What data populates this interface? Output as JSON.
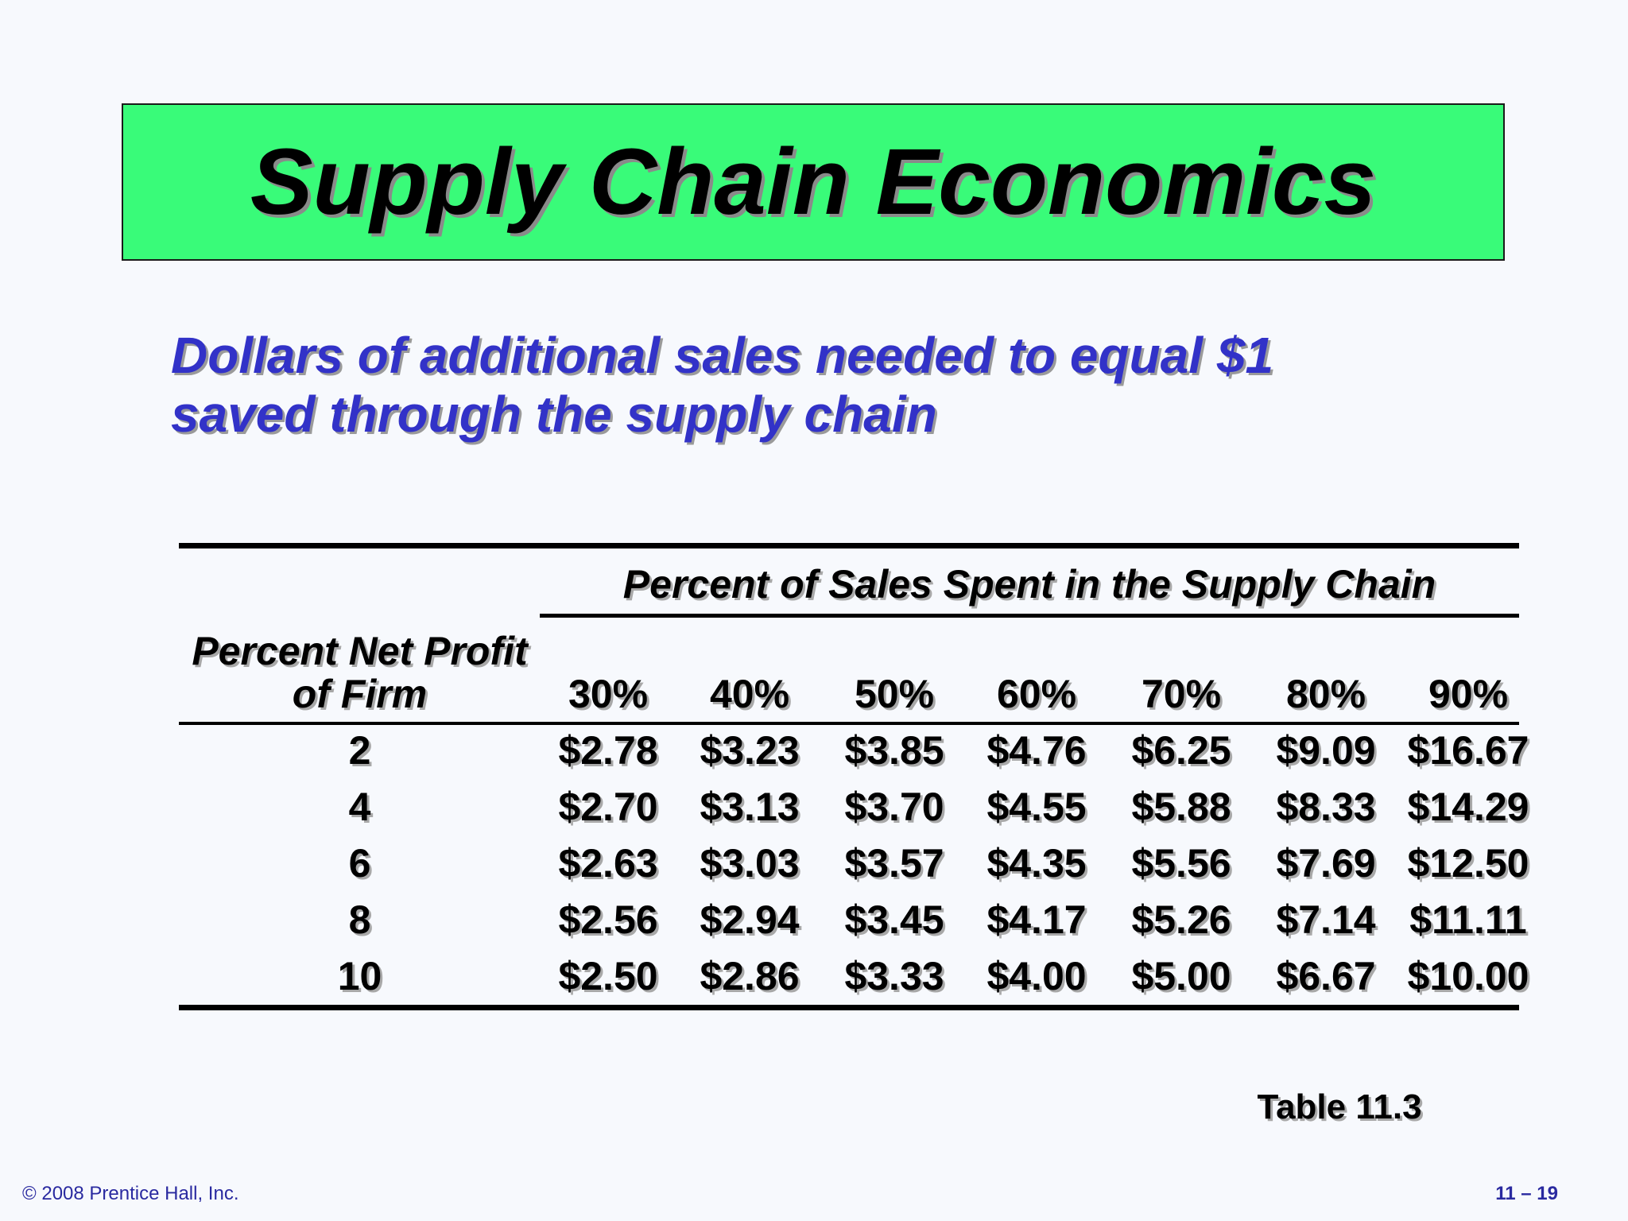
{
  "slide": {
    "title": "Supply Chain Economics",
    "subtitle_line1": "Dollars of additional sales needed to equal $1",
    "subtitle_line2": "saved through the supply chain",
    "table_label": "Table 11.3",
    "footer_copyright": "© 2008 Prentice Hall, Inc.",
    "footer_page": "11 – 19",
    "colors": {
      "title_background": "#39fb79",
      "subtitle_text": "#3232c8",
      "footer_text": "#2a2aa0"
    }
  },
  "table": {
    "spanning_header": "Percent of Sales Spent in the Supply Chain",
    "row_header_line1": "Percent Net Profit",
    "row_header_line2": "of Firm",
    "columns": [
      "30%",
      "40%",
      "50%",
      "60%",
      "70%",
      "80%",
      "90%"
    ],
    "rows": [
      {
        "profit": "2",
        "values": [
          "$2.78",
          "$3.23",
          "$3.85",
          "$4.76",
          "$6.25",
          "$9.09",
          "$16.67"
        ]
      },
      {
        "profit": "4",
        "values": [
          "$2.70",
          "$3.13",
          "$3.70",
          "$4.55",
          "$5.88",
          "$8.33",
          "$14.29"
        ]
      },
      {
        "profit": "6",
        "values": [
          "$2.63",
          "$3.03",
          "$3.57",
          "$4.35",
          "$5.56",
          "$7.69",
          "$12.50"
        ]
      },
      {
        "profit": "8",
        "values": [
          "$2.56",
          "$2.94",
          "$3.45",
          "$4.17",
          "$5.26",
          "$7.14",
          "$11.11"
        ]
      },
      {
        "profit": "10",
        "values": [
          "$2.50",
          "$2.86",
          "$3.33",
          "$4.00",
          "$5.00",
          "$6.67",
          "$10.00"
        ]
      }
    ]
  }
}
